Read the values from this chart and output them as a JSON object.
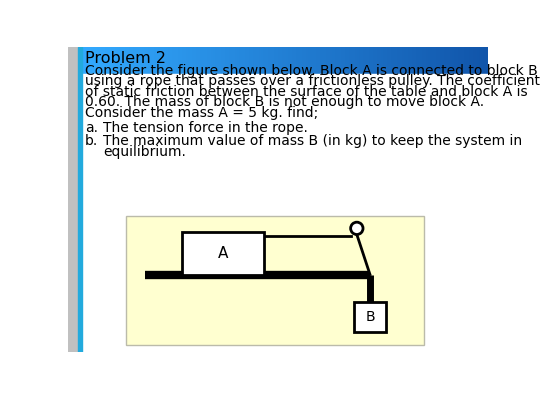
{
  "title": "Problem 2",
  "bg_color": "#ffffff",
  "left_bar_color": "#c0c0c0",
  "blue_bar_color": "#3399cc",
  "header_text_color": "#000000",
  "body_text_color": "#000000",
  "body_text": [
    "Consider the figure shown below. Block A is connected to block B",
    "using a rope that passes over a frictionless pulley. The coefficient",
    "of static friction between the surface of the table and block A is",
    "0.60. The mass of block B is not enough to move block A.",
    "Consider the mass A = 5 kg. find;"
  ],
  "item_a": "The tension force in the rope.",
  "item_b_line1": "The maximum value of mass B (in kg) to keep the system in",
  "item_b_line2": "equilibrium.",
  "diagram_bg": "#ffffd0",
  "title_fontsize": 11.5,
  "body_fontsize": 10.0
}
